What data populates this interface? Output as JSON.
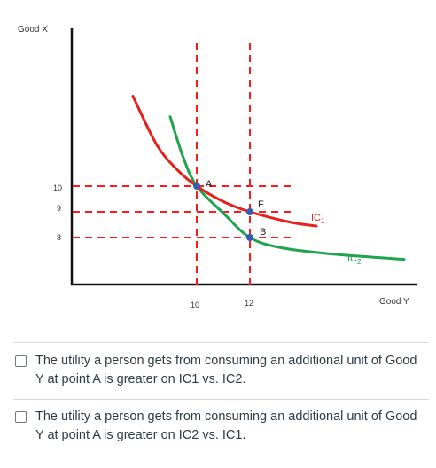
{
  "chart_data": {
    "type": "line",
    "title": "",
    "xlabel": "Good Y",
    "ylabel": "Good X",
    "x_ticks": [
      "10",
      "12"
    ],
    "y_ticks": [
      "10",
      "9",
      "8"
    ],
    "series": [
      {
        "name": "IC1",
        "color": "#e8201c",
        "points": [
          [
            7.6,
            13.5
          ],
          [
            8.5,
            11.6
          ],
          [
            9.3,
            10.6
          ],
          [
            10,
            10
          ],
          [
            11,
            9.4
          ],
          [
            12,
            9
          ],
          [
            13.5,
            8.6
          ],
          [
            14.5,
            8.45
          ]
        ]
      },
      {
        "name": "IC2",
        "color": "#1fa34d",
        "points": [
          [
            9.0,
            12.7
          ],
          [
            9.5,
            11.1
          ],
          [
            10,
            10
          ],
          [
            11,
            8.95
          ],
          [
            12,
            8
          ],
          [
            13.2,
            7.6
          ],
          [
            15.2,
            7.35
          ],
          [
            17.8,
            7.15
          ]
        ]
      }
    ],
    "points": [
      {
        "label": "A",
        "x": 10,
        "y": 10
      },
      {
        "label": "F",
        "x": 12,
        "y": 9
      },
      {
        "label": "B",
        "x": 12,
        "y": 8
      }
    ],
    "curve_labels": [
      {
        "main": "IC",
        "sub": "1",
        "color": "#e8201c"
      },
      {
        "main": "IC",
        "sub": "2",
        "color": "#1fa34d"
      }
    ],
    "guides_color": "#ff1a1a"
  },
  "question": {
    "options": [
      {
        "text": "The utility a person gets from consuming an additional unit of Good Y at point A is greater on IC1 vs. IC2."
      },
      {
        "text": "The utility a person gets from consuming an additional unit of Good Y at point A is greater on IC2 vs. IC1."
      }
    ]
  }
}
